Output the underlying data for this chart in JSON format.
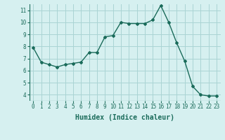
{
  "x": [
    0,
    1,
    2,
    3,
    4,
    5,
    6,
    7,
    8,
    9,
    10,
    11,
    12,
    13,
    14,
    15,
    16,
    17,
    18,
    19,
    20,
    21,
    22,
    23
  ],
  "y": [
    7.9,
    6.7,
    6.5,
    6.3,
    6.5,
    6.6,
    6.7,
    7.5,
    7.5,
    8.8,
    8.9,
    10.0,
    9.9,
    9.9,
    9.9,
    10.2,
    11.4,
    10.0,
    8.3,
    6.8,
    4.7,
    4.0,
    3.9,
    3.9
  ],
  "line_color": "#1a6b5a",
  "marker": "D",
  "marker_size": 2,
  "bg_color": "#d6f0f0",
  "grid_color": "#aad4d4",
  "xlabel": "Humidex (Indice chaleur)",
  "ylabel": "",
  "xlim": [
    -0.5,
    23.5
  ],
  "ylim": [
    3.5,
    11.5
  ],
  "yticks": [
    4,
    5,
    6,
    7,
    8,
    9,
    10,
    11
  ],
  "xticks": [
    0,
    1,
    2,
    3,
    4,
    5,
    6,
    7,
    8,
    9,
    10,
    11,
    12,
    13,
    14,
    15,
    16,
    17,
    18,
    19,
    20,
    21,
    22,
    23
  ],
  "tick_fontsize": 5.5,
  "xlabel_fontsize": 7,
  "linewidth": 1.0
}
